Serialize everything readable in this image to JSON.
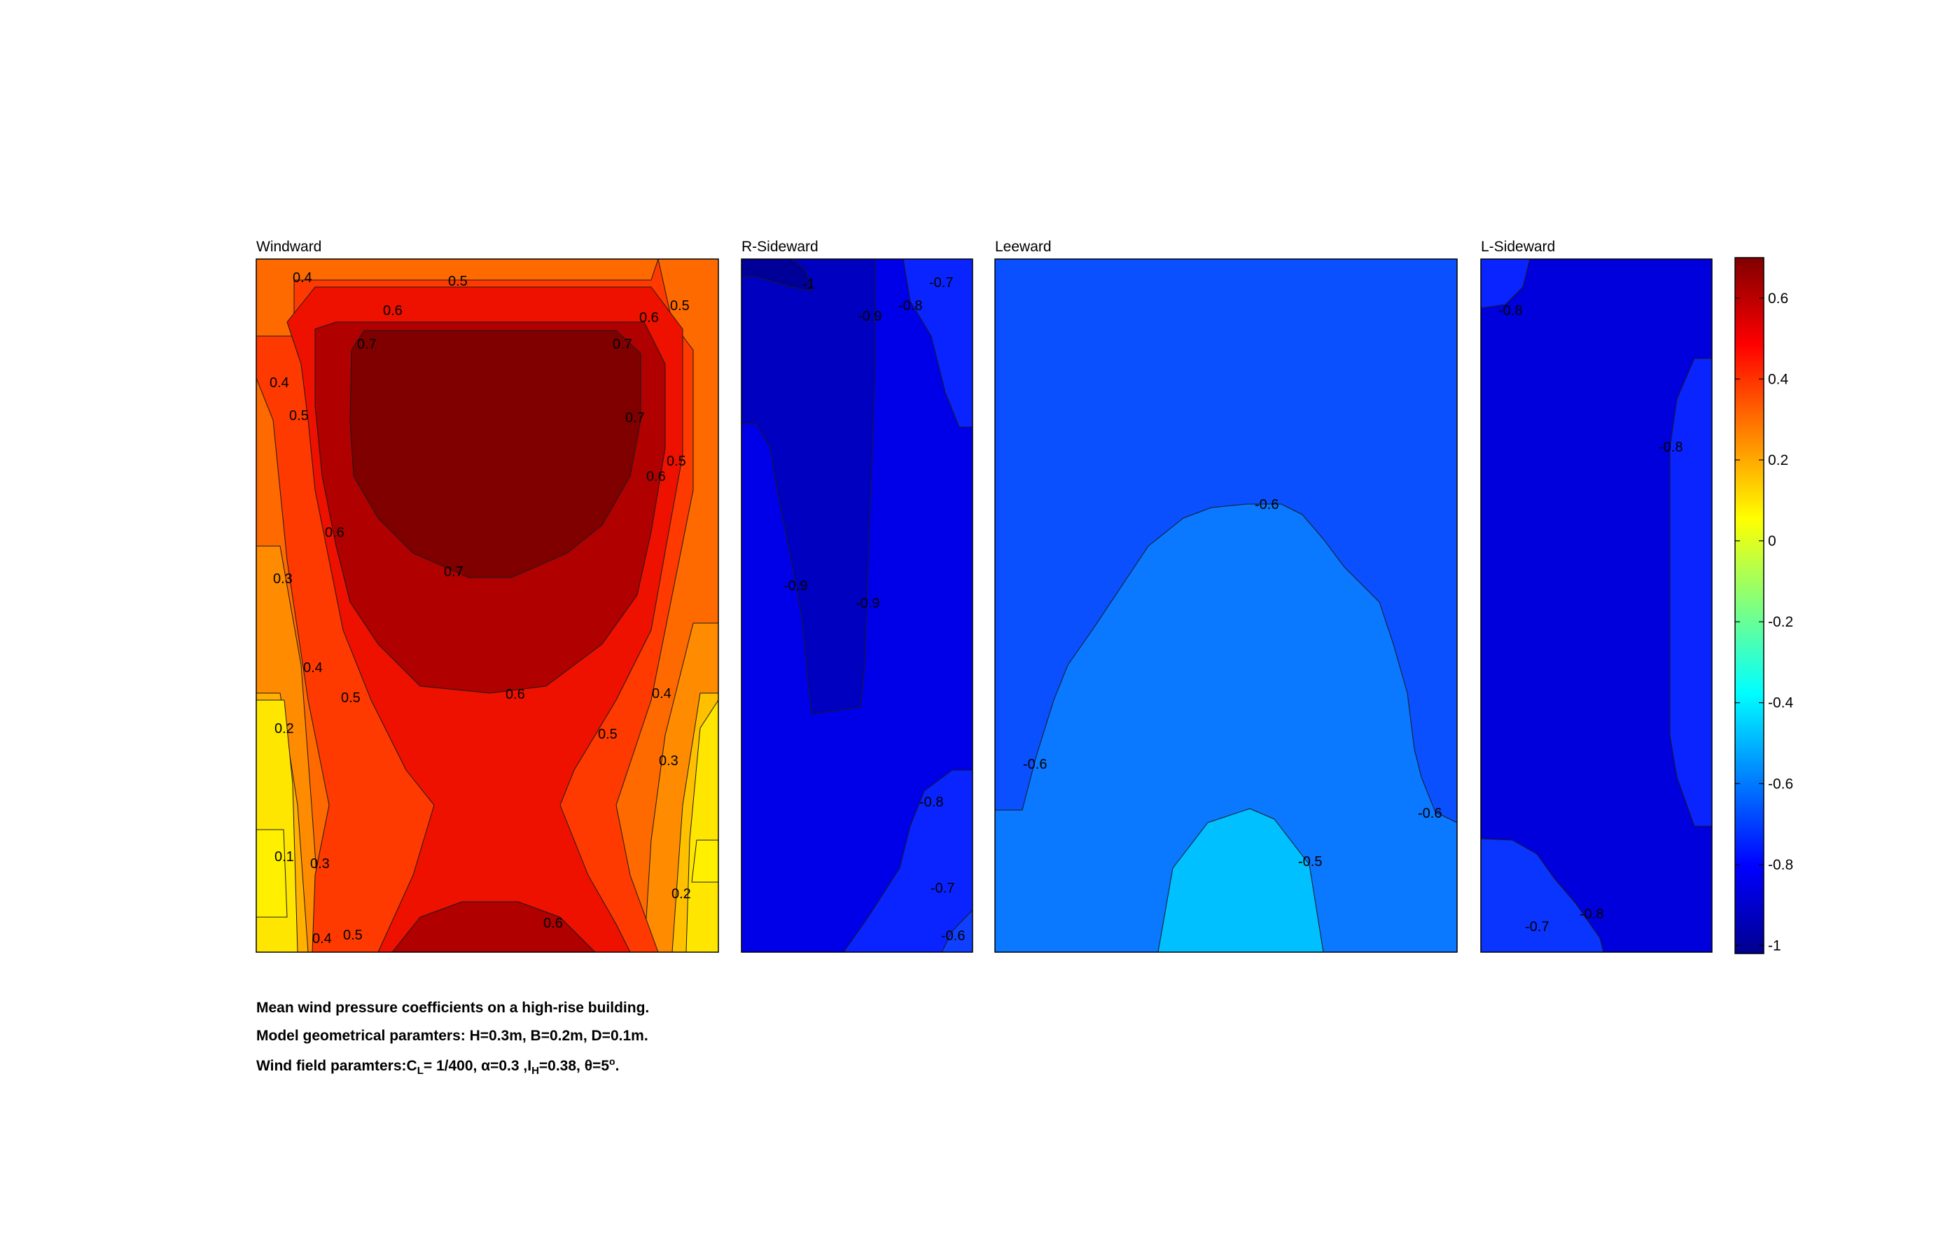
{
  "chart_data": {
    "type": "heatmap",
    "colormap": "jet",
    "colorbar": {
      "range": [
        -1.02,
        0.7
      ],
      "tick_values": [
        0.6,
        0.4,
        0.2,
        0,
        -0.2,
        -0.4,
        -0.6,
        -0.8,
        -1
      ],
      "tick_labels": [
        "0.6",
        "0.4",
        "0.2",
        "0",
        "-0.2",
        "-0.4",
        "-0.6",
        "-0.8",
        "-1"
      ]
    },
    "panels": [
      {
        "title": "Windward",
        "contour_levels": [
          0.1,
          0.2,
          0.3,
          0.4,
          0.5,
          0.6,
          0.7
        ],
        "max_value": 0.75,
        "min_value": 0.05,
        "contour_labels": [
          "0.4",
          "0.5",
          "0.6",
          "0.7",
          "0.7",
          "0.6",
          "0.5",
          "0.4",
          "0.5",
          "0.7",
          "0.6",
          "0.5",
          "0.6",
          "0.7",
          "0.3",
          "0.4",
          "0.5",
          "0.6",
          "0.4",
          "0.2",
          "0.5",
          "0.3",
          "0.1",
          "0.3",
          "0.2",
          "0.4",
          "0.5",
          "0.6"
        ]
      },
      {
        "title": "R-Sideward",
        "contour_levels": [
          -1.0,
          -0.9,
          -0.8,
          -0.7,
          -0.6
        ],
        "max_value": -0.65,
        "min_value": -1.0,
        "contour_labels": [
          "-1",
          "-0.9",
          "-0.8",
          "-0.7",
          "-0.9",
          "-0.9",
          "-0.8",
          "-0.7",
          "-0.6"
        ]
      },
      {
        "title": "Leeward",
        "contour_levels": [
          -0.6,
          -0.5
        ],
        "max_value": -0.45,
        "min_value": -0.65,
        "contour_labels": [
          "-0.6",
          "-0.6",
          "-0.6",
          "-0.5"
        ]
      },
      {
        "title": "L-Sideward",
        "contour_levels": [
          -0.8,
          -0.7
        ],
        "max_value": -0.7,
        "min_value": -0.85,
        "contour_labels": [
          "-0.8",
          "-0.8",
          "-0.7",
          "-0.8"
        ]
      }
    ]
  },
  "caption": {
    "line1": "Mean wind pressure coefficients on a high-rise building.",
    "line2": "Model geometrical paramters: H=0.3m, B=0.2m, D=0.1m.",
    "line3_prefix": "Wind field paramters:C",
    "line3_cl_sub": "L",
    "line3_mid": "= 1/400, α=0.3 ,I",
    "line3_ih_sub": "H",
    "line3_mid2": "=0.38, θ=5",
    "line3_sup": "o",
    "line3_end": "."
  }
}
